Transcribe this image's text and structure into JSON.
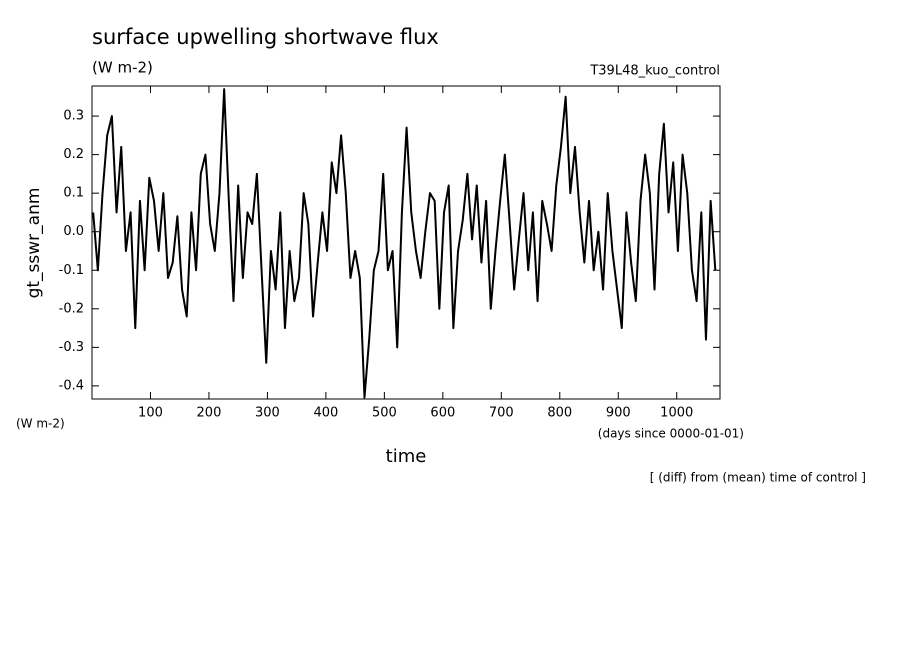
{
  "chart_data": {
    "type": "line",
    "title": "surface upwelling shortwave flux",
    "subtitle": "(W m-2)",
    "annotation": "T39L48_kuo_control",
    "y_label": "gt_sswr_anm",
    "y_units": "(W m-2)",
    "x_units": "(days since 0000-01-01)",
    "x_label": "time",
    "note": "[ (diff) from (mean) time of control ]",
    "xlim": [
      0,
      1074
    ],
    "ylim": [
      -0.434,
      0.378
    ],
    "xticks": [
      100,
      200,
      300,
      400,
      500,
      600,
      700,
      800,
      900,
      1000
    ],
    "yticks": [
      -0.4,
      -0.3,
      -0.2,
      -0.1,
      {
        "value": 0,
        "label": "0.0"
      },
      0.1,
      0.2,
      0.3
    ],
    "color": "#000000",
    "x": [
      2,
      10,
      18,
      26,
      34,
      42,
      50,
      58,
      66,
      74,
      82,
      90,
      98,
      106,
      114,
      122,
      130,
      138,
      146,
      154,
      162,
      170,
      178,
      186,
      194,
      202,
      210,
      218,
      226,
      234,
      242,
      250,
      258,
      266,
      274,
      282,
      290,
      298,
      306,
      314,
      322,
      330,
      338,
      346,
      354,
      362,
      370,
      378,
      386,
      394,
      402,
      410,
      418,
      426,
      434,
      442,
      450,
      458,
      466,
      474,
      482,
      490,
      498,
      506,
      514,
      522,
      530,
      538,
      546,
      554,
      562,
      570,
      578,
      586,
      594,
      602,
      610,
      618,
      626,
      634,
      642,
      650,
      658,
      666,
      674,
      682,
      690,
      698,
      706,
      714,
      722,
      730,
      738,
      746,
      754,
      762,
      770,
      778,
      786,
      794,
      802,
      810,
      818,
      826,
      834,
      842,
      850,
      858,
      866,
      874,
      882,
      890,
      898,
      906,
      914,
      922,
      930,
      938,
      946,
      954,
      962,
      970,
      978,
      986,
      994,
      1002,
      1010,
      1018,
      1026,
      1034,
      1042,
      1050,
      1058,
      1066
    ],
    "values": [
      0.05,
      -0.1,
      0.1,
      0.25,
      0.3,
      0.05,
      0.22,
      -0.05,
      0.05,
      -0.25,
      0.08,
      -0.1,
      0.14,
      0.08,
      -0.05,
      0.1,
      -0.12,
      -0.08,
      0.04,
      -0.15,
      -0.22,
      0.05,
      -0.1,
      0.15,
      0.2,
      0.02,
      -0.05,
      0.1,
      0.37,
      0.08,
      -0.18,
      0.12,
      -0.12,
      0.05,
      0.02,
      0.15,
      -0.1,
      -0.34,
      -0.05,
      -0.15,
      0.05,
      -0.25,
      -0.05,
      -0.18,
      -0.12,
      0.1,
      0.02,
      -0.22,
      -0.08,
      0.05,
      -0.05,
      0.18,
      0.1,
      0.25,
      0.1,
      -0.12,
      -0.05,
      -0.12,
      -0.43,
      -0.28,
      -0.1,
      -0.05,
      0.15,
      -0.1,
      -0.05,
      -0.3,
      0.05,
      0.27,
      0.05,
      -0.05,
      -0.12,
      0.0,
      0.1,
      0.08,
      -0.2,
      0.05,
      0.12,
      -0.25,
      -0.05,
      0.03,
      0.15,
      -0.02,
      0.12,
      -0.08,
      0.08,
      -0.2,
      -0.05,
      0.08,
      0.2,
      0.03,
      -0.15,
      -0.02,
      0.1,
      -0.1,
      0.05,
      -0.18,
      0.08,
      0.02,
      -0.05,
      0.12,
      0.22,
      0.35,
      0.1,
      0.22,
      0.05,
      -0.08,
      0.08,
      -0.1,
      0.0,
      -0.15,
      0.1,
      -0.05,
      -0.15,
      -0.25,
      0.05,
      -0.08,
      -0.18,
      0.08,
      0.2,
      0.1,
      -0.15,
      0.15,
      0.28,
      0.05,
      0.18,
      -0.05,
      0.2,
      0.1,
      -0.1,
      -0.18,
      0.05,
      -0.28,
      0.08,
      -0.1
    ]
  }
}
